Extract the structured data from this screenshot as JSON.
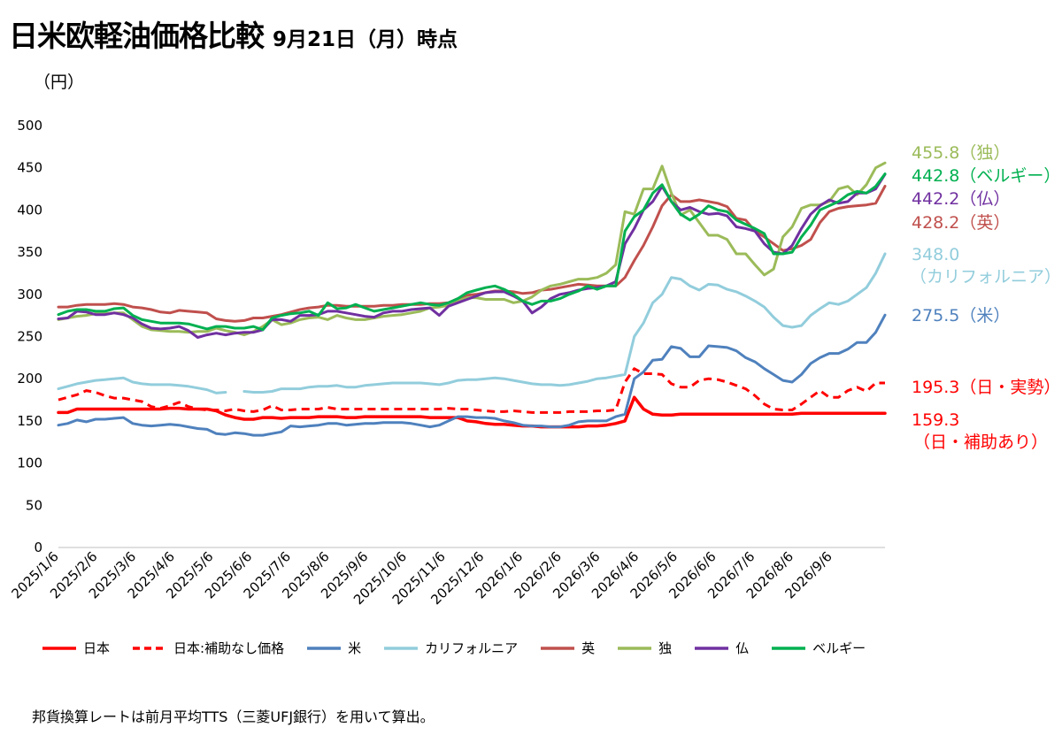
{
  "title": "日米欧軽油価格比較",
  "subtitle": "9月21日（月）時点",
  "unit_label": "（円）",
  "footnote": "邦貨換算レートは前月平均TTS（三菱UFJ銀行）を用いて算出。",
  "end_labels": [
    {
      "id": "doku",
      "text": "455.8（独）",
      "color": "#9BBB59"
    },
    {
      "id": "bel",
      "text": "442.8（ベルギー）",
      "color": "#00B050"
    },
    {
      "id": "fr",
      "text": "442.2（仏）",
      "color": "#7030A0"
    },
    {
      "id": "uk",
      "text": "428.2（英）",
      "color": "#C0504D"
    },
    {
      "id": "ca1",
      "text": "348.0",
      "color": "#92CDDC"
    },
    {
      "id": "ca2",
      "text": "（カリフォルニア）",
      "color": "#92CDDC"
    },
    {
      "id": "us",
      "text": "275.5（米）",
      "color": "#4F81BD"
    },
    {
      "id": "jpn",
      "text": "195.3（日・実勢）",
      "color": "#FF0000"
    },
    {
      "id": "jps1",
      "text": "159.3",
      "color": "#FF0000"
    },
    {
      "id": "jps2",
      "text": "（日・補助あり）",
      "color": "#FF0000"
    }
  ],
  "chart_data": {
    "type": "line",
    "ylim": [
      0,
      500
    ],
    "yticks": [
      0,
      50,
      100,
      150,
      200,
      250,
      300,
      350,
      400,
      450,
      500
    ],
    "xticks": [
      "2025/1/6",
      "2025/2/6",
      "2025/3/6",
      "2025/4/6",
      "2025/5/6",
      "2025/6/6",
      "2025/7/6",
      "2025/8/6",
      "2025/9/6",
      "2025/10/6",
      "2025/11/6",
      "2025/12/6",
      "2026/1/6",
      "2026/2/6",
      "2026/3/6",
      "2026/4/6",
      "2026/5/6",
      "2026/6/6",
      "2026/7/6",
      "2026/8/6",
      "2026/9/6"
    ],
    "grid": false,
    "legend_position": "bottom",
    "x_week_points": 90,
    "series": [
      {
        "name": "日本",
        "color": "#FF0000",
        "dash": false,
        "width": 3.5,
        "values": [
          160,
          160,
          164,
          164,
          164,
          164,
          164,
          164,
          164,
          164,
          164,
          164,
          165,
          165,
          164,
          164,
          164,
          162,
          157,
          154,
          152,
          152,
          154,
          154,
          153,
          154,
          154,
          154,
          155,
          155,
          155,
          154,
          154,
          155,
          155,
          155,
          155,
          155,
          155,
          155,
          154,
          154,
          154,
          154,
          150,
          149,
          147,
          146,
          146,
          145,
          144,
          144,
          143,
          143,
          143,
          143,
          143,
          144,
          144,
          145,
          147,
          150,
          178,
          164,
          158,
          157,
          157,
          158,
          158,
          158,
          158,
          158,
          158,
          158,
          158,
          158,
          158,
          158,
          158,
          158,
          159,
          159,
          159,
          159,
          159,
          159,
          159,
          159,
          159,
          159
        ]
      },
      {
        "name": "日本:補助なし価格",
        "color": "#FF0000",
        "dash": true,
        "width": 3,
        "values": [
          175,
          178,
          181,
          186,
          184,
          180,
          177,
          177,
          175,
          173,
          167,
          165,
          168,
          172,
          167,
          164,
          163,
          163,
          162,
          164,
          162,
          161,
          163,
          168,
          163,
          163,
          164,
          164,
          164,
          166,
          164,
          164,
          164,
          164,
          164,
          164,
          164,
          164,
          164,
          164,
          164,
          164,
          165,
          164,
          164,
          163,
          162,
          161,
          161,
          162,
          161,
          160,
          160,
          160,
          160,
          161,
          161,
          161,
          162,
          162,
          163,
          196,
          212,
          206,
          206,
          205,
          194,
          190,
          190,
          198,
          200,
          199,
          196,
          192,
          188,
          180,
          170,
          164,
          163,
          163,
          170,
          178,
          186,
          178,
          178,
          186,
          190,
          185,
          195,
          195
        ]
      },
      {
        "name": "米",
        "color": "#4F81BD",
        "dash": false,
        "width": 3,
        "values": [
          145,
          147,
          151,
          149,
          152,
          152,
          153,
          154,
          147,
          145,
          144,
          145,
          146,
          145,
          143,
          141,
          140,
          135,
          134,
          136,
          135,
          133,
          133,
          135,
          137,
          144,
          143,
          144,
          145,
          147,
          147,
          145,
          146,
          147,
          147,
          148,
          148,
          148,
          147,
          145,
          143,
          145,
          150,
          155,
          155,
          154,
          154,
          153,
          150,
          148,
          145,
          144,
          144,
          143,
          143,
          145,
          149,
          150,
          150,
          150,
          155,
          158,
          200,
          208,
          222,
          223,
          238,
          236,
          226,
          226,
          239,
          238,
          237,
          233,
          225,
          220,
          212,
          205,
          198,
          196,
          205,
          218,
          225,
          230,
          230,
          235,
          243,
          243,
          255,
          275.5
        ]
      },
      {
        "name": "カリフォルニア",
        "color": "#92CDDC",
        "dash": false,
        "width": 3,
        "gaps": [
          17
        ],
        "values": [
          188,
          191,
          194,
          196,
          198,
          199,
          200,
          201,
          196,
          194,
          193,
          193,
          193,
          192,
          191,
          189,
          187,
          183,
          184,
          null,
          185,
          184,
          184,
          185,
          188,
          188,
          188,
          190,
          191,
          191,
          192,
          190,
          190,
          192,
          193,
          194,
          195,
          195,
          195,
          195,
          194,
          193,
          195,
          198,
          199,
          199,
          200,
          201,
          200,
          198,
          196,
          194,
          193,
          193,
          192,
          193,
          195,
          197,
          200,
          201,
          203,
          205,
          250,
          266,
          290,
          300,
          320,
          318,
          310,
          305,
          312,
          311,
          306,
          303,
          298,
          292,
          285,
          273,
          263,
          261,
          263,
          275,
          283,
          290,
          288,
          292,
          300,
          308,
          325,
          348
        ]
      },
      {
        "name": "英",
        "color": "#C0504D",
        "dash": false,
        "width": 3,
        "values": [
          285,
          285,
          287,
          288,
          288,
          288,
          289,
          288,
          285,
          284,
          282,
          279,
          278,
          281,
          280,
          279,
          278,
          271,
          269,
          268,
          269,
          272,
          272,
          274,
          276,
          279,
          282,
          284,
          285,
          287,
          287,
          286,
          286,
          286,
          286,
          287,
          287,
          288,
          288,
          288,
          289,
          289,
          290,
          295,
          299,
          300,
          302,
          304,
          304,
          303,
          301,
          302,
          305,
          306,
          308,
          310,
          312,
          311,
          310,
          310,
          310,
          320,
          340,
          358,
          380,
          405,
          418,
          410,
          410,
          412,
          410,
          408,
          404,
          390,
          388,
          375,
          368,
          360,
          352,
          354,
          358,
          365,
          385,
          398,
          402,
          404,
          405,
          406,
          408,
          428.2
        ]
      },
      {
        "name": "独",
        "color": "#9BBB59",
        "dash": false,
        "width": 3,
        "values": [
          270,
          272,
          274,
          275,
          277,
          277,
          278,
          278,
          270,
          262,
          258,
          257,
          256,
          256,
          255,
          256,
          256,
          260,
          257,
          255,
          252,
          256,
          262,
          270,
          264,
          266,
          270,
          272,
          273,
          270,
          275,
          272,
          270,
          270,
          272,
          274,
          275,
          276,
          278,
          280,
          284,
          285,
          287,
          292,
          296,
          296,
          294,
          294,
          294,
          290,
          292,
          297,
          305,
          310,
          312,
          315,
          318,
          318,
          320,
          325,
          335,
          398,
          395,
          425,
          425,
          452,
          420,
          394,
          400,
          385,
          370,
          370,
          365,
          348,
          348,
          335,
          323,
          330,
          368,
          380,
          402,
          406,
          406,
          410,
          425,
          428,
          418,
          430,
          450,
          455.8
        ]
      },
      {
        "name": "仏",
        "color": "#7030A0",
        "dash": false,
        "width": 3,
        "values": [
          271,
          272,
          280,
          279,
          276,
          276,
          278,
          276,
          272,
          265,
          260,
          259,
          260,
          262,
          257,
          249,
          252,
          254,
          252,
          254,
          255,
          255,
          258,
          270,
          270,
          268,
          275,
          275,
          276,
          280,
          280,
          278,
          276,
          274,
          273,
          278,
          280,
          280,
          282,
          283,
          284,
          275,
          286,
          290,
          294,
          298,
          302,
          303,
          303,
          298,
          292,
          278,
          285,
          295,
          300,
          302,
          305,
          307,
          308,
          310,
          315,
          360,
          378,
          400,
          410,
          428,
          410,
          400,
          403,
          398,
          395,
          396,
          393,
          380,
          378,
          375,
          360,
          350,
          348,
          358,
          378,
          395,
          405,
          412,
          408,
          410,
          420,
          420,
          425,
          442.2
        ]
      },
      {
        "name": "ベルギー",
        "color": "#00B050",
        "dash": false,
        "width": 3,
        "values": [
          276,
          280,
          282,
          282,
          280,
          280,
          283,
          284,
          275,
          270,
          268,
          266,
          266,
          266,
          265,
          262,
          259,
          262,
          262,
          260,
          260,
          262,
          258,
          272,
          275,
          277,
          278,
          280,
          275,
          290,
          283,
          284,
          288,
          284,
          280,
          282,
          284,
          286,
          288,
          290,
          288,
          287,
          290,
          295,
          302,
          305,
          308,
          310,
          306,
          300,
          292,
          288,
          292,
          292,
          295,
          300,
          304,
          310,
          306,
          310,
          310,
          375,
          392,
          400,
          420,
          430,
          410,
          395,
          388,
          395,
          405,
          400,
          398,
          388,
          383,
          378,
          372,
          348,
          348,
          350,
          368,
          382,
          400,
          405,
          410,
          418,
          422,
          420,
          428,
          442.8
        ]
      }
    ]
  }
}
